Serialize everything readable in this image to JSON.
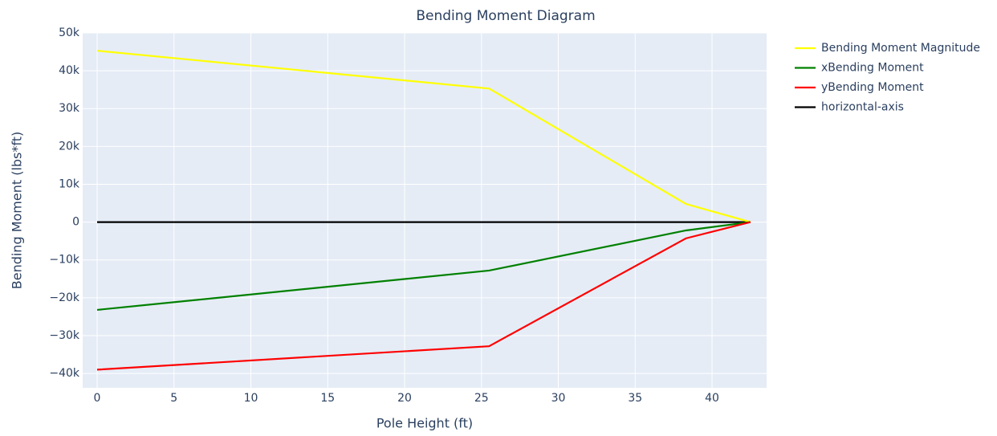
{
  "chart_data": {
    "type": "line",
    "title": "Bending Moment Diagram",
    "x_label": "Pole Height (ft)",
    "y_label": "Bending Moment (lbs*ft)",
    "x": [
      0,
      25.5,
      38.3,
      42.5
    ],
    "series": [
      {
        "name": "Bending Moment Magnitude",
        "color": "#ffff00",
        "values": [
          45300,
          35300,
          4800,
          0
        ]
      },
      {
        "name": "xBending Moment",
        "color": "#008000",
        "values": [
          -23200,
          -12800,
          -2200,
          0
        ]
      },
      {
        "name": "yBending Moment",
        "color": "#ff0000",
        "values": [
          -39000,
          -32800,
          -4300,
          0
        ]
      },
      {
        "name": "horizontal-axis",
        "color": "#000000",
        "values": [
          0,
          0,
          0,
          0
        ]
      }
    ],
    "xlim": [
      -0.94,
      43.55
    ],
    "xticks": [
      0,
      5,
      10,
      15,
      20,
      25,
      30,
      35,
      40
    ],
    "ylim": [
      -43800,
      50000
    ],
    "yticks": [
      {
        "value": -40000,
        "label": "−40k"
      },
      {
        "value": -30000,
        "label": "−30k"
      },
      {
        "value": -20000,
        "label": "−20k"
      },
      {
        "value": -10000,
        "label": "−10k"
      },
      0,
      {
        "value": 10000,
        "label": "10k"
      },
      {
        "value": 20000,
        "label": "20k"
      },
      {
        "value": 30000,
        "label": "30k"
      },
      {
        "value": 40000,
        "label": "40k"
      },
      {
        "value": 50000,
        "label": "50k"
      }
    ],
    "grid": true,
    "legend": "right"
  }
}
